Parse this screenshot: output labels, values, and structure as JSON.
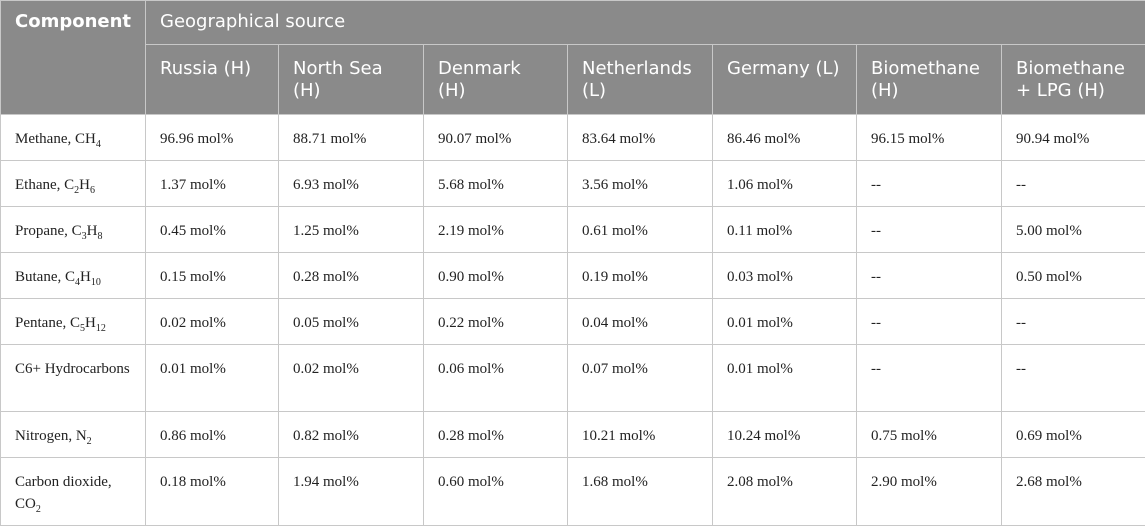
{
  "header": {
    "component_label": "Component",
    "group_label": "Geographical source",
    "columns": [
      "Russia (H)",
      "North Sea (H)",
      "Denmark (H)",
      "Netherlands (L)",
      "Germany (L)",
      "Biomethane (H)",
      "Biomethane + LPG (H)"
    ]
  },
  "rows": [
    {
      "name": "Methane, ",
      "formula": [
        [
          "CH",
          ""
        ],
        [
          "",
          "4"
        ]
      ],
      "values": [
        "96.96 mol%",
        "88.71 mol%",
        "90.07 mol%",
        "83.64 mol%",
        "86.46 mol%",
        "96.15 mol%",
        "90.94 mol%"
      ]
    },
    {
      "name": "Ethane, ",
      "formula": [
        [
          "C",
          "2"
        ],
        [
          "H",
          "6"
        ]
      ],
      "values": [
        "1.37 mol%",
        "6.93 mol%",
        "5.68 mol%",
        "3.56 mol%",
        "1.06 mol%",
        "--",
        "--"
      ]
    },
    {
      "name": "Propane, ",
      "formula": [
        [
          "C",
          "3"
        ],
        [
          "H",
          "8"
        ]
      ],
      "values": [
        "0.45 mol%",
        "1.25 mol%",
        "2.19 mol%",
        "0.61 mol%",
        "0.11 mol%",
        "--",
        "5.00 mol%"
      ]
    },
    {
      "name": "Butane, ",
      "formula": [
        [
          "C",
          "4"
        ],
        [
          "H",
          "10"
        ]
      ],
      "values": [
        "0.15 mol%",
        "0.28 mol%",
        "0.90 mol%",
        "0.19 mol%",
        "0.03 mol%",
        "--",
        "0.50 mol%"
      ]
    },
    {
      "name": "Pentane, ",
      "formula": [
        [
          "C",
          "5"
        ],
        [
          "H",
          "12"
        ]
      ],
      "values": [
        "0.02 mol%",
        "0.05 mol%",
        "0.22 mol%",
        "0.04 mol%",
        "0.01 mol%",
        "--",
        "--"
      ]
    },
    {
      "name": "C6+ Hydrocarbons",
      "formula": [],
      "values": [
        "0.01 mol%",
        "0.02 mol%",
        "0.06 mol%",
        "0.07 mol%",
        "0.01 mol%",
        "--",
        "--"
      ]
    },
    {
      "name": "Nitrogen, ",
      "formula": [
        [
          "N",
          "2"
        ]
      ],
      "values": [
        "0.86 mol%",
        "0.82 mol%",
        "0.28 mol%",
        "10.21 mol%",
        "10.24 mol%",
        "0.75 mol%",
        "0.69 mol%"
      ]
    },
    {
      "name": "Carbon dioxide, ",
      "formula": [
        [
          "CO",
          "2"
        ]
      ],
      "values": [
        "0.18 mol%",
        "1.94 mol%",
        "0.60 mol%",
        "1.68 mol%",
        "2.08 mol%",
        "2.90 mol%",
        "2.68 mol%"
      ]
    }
  ],
  "colors": {
    "header_bg": "#8a8a8a",
    "header_text": "#ffffff",
    "border": "#c8c8c8",
    "body_text": "#222222"
  }
}
